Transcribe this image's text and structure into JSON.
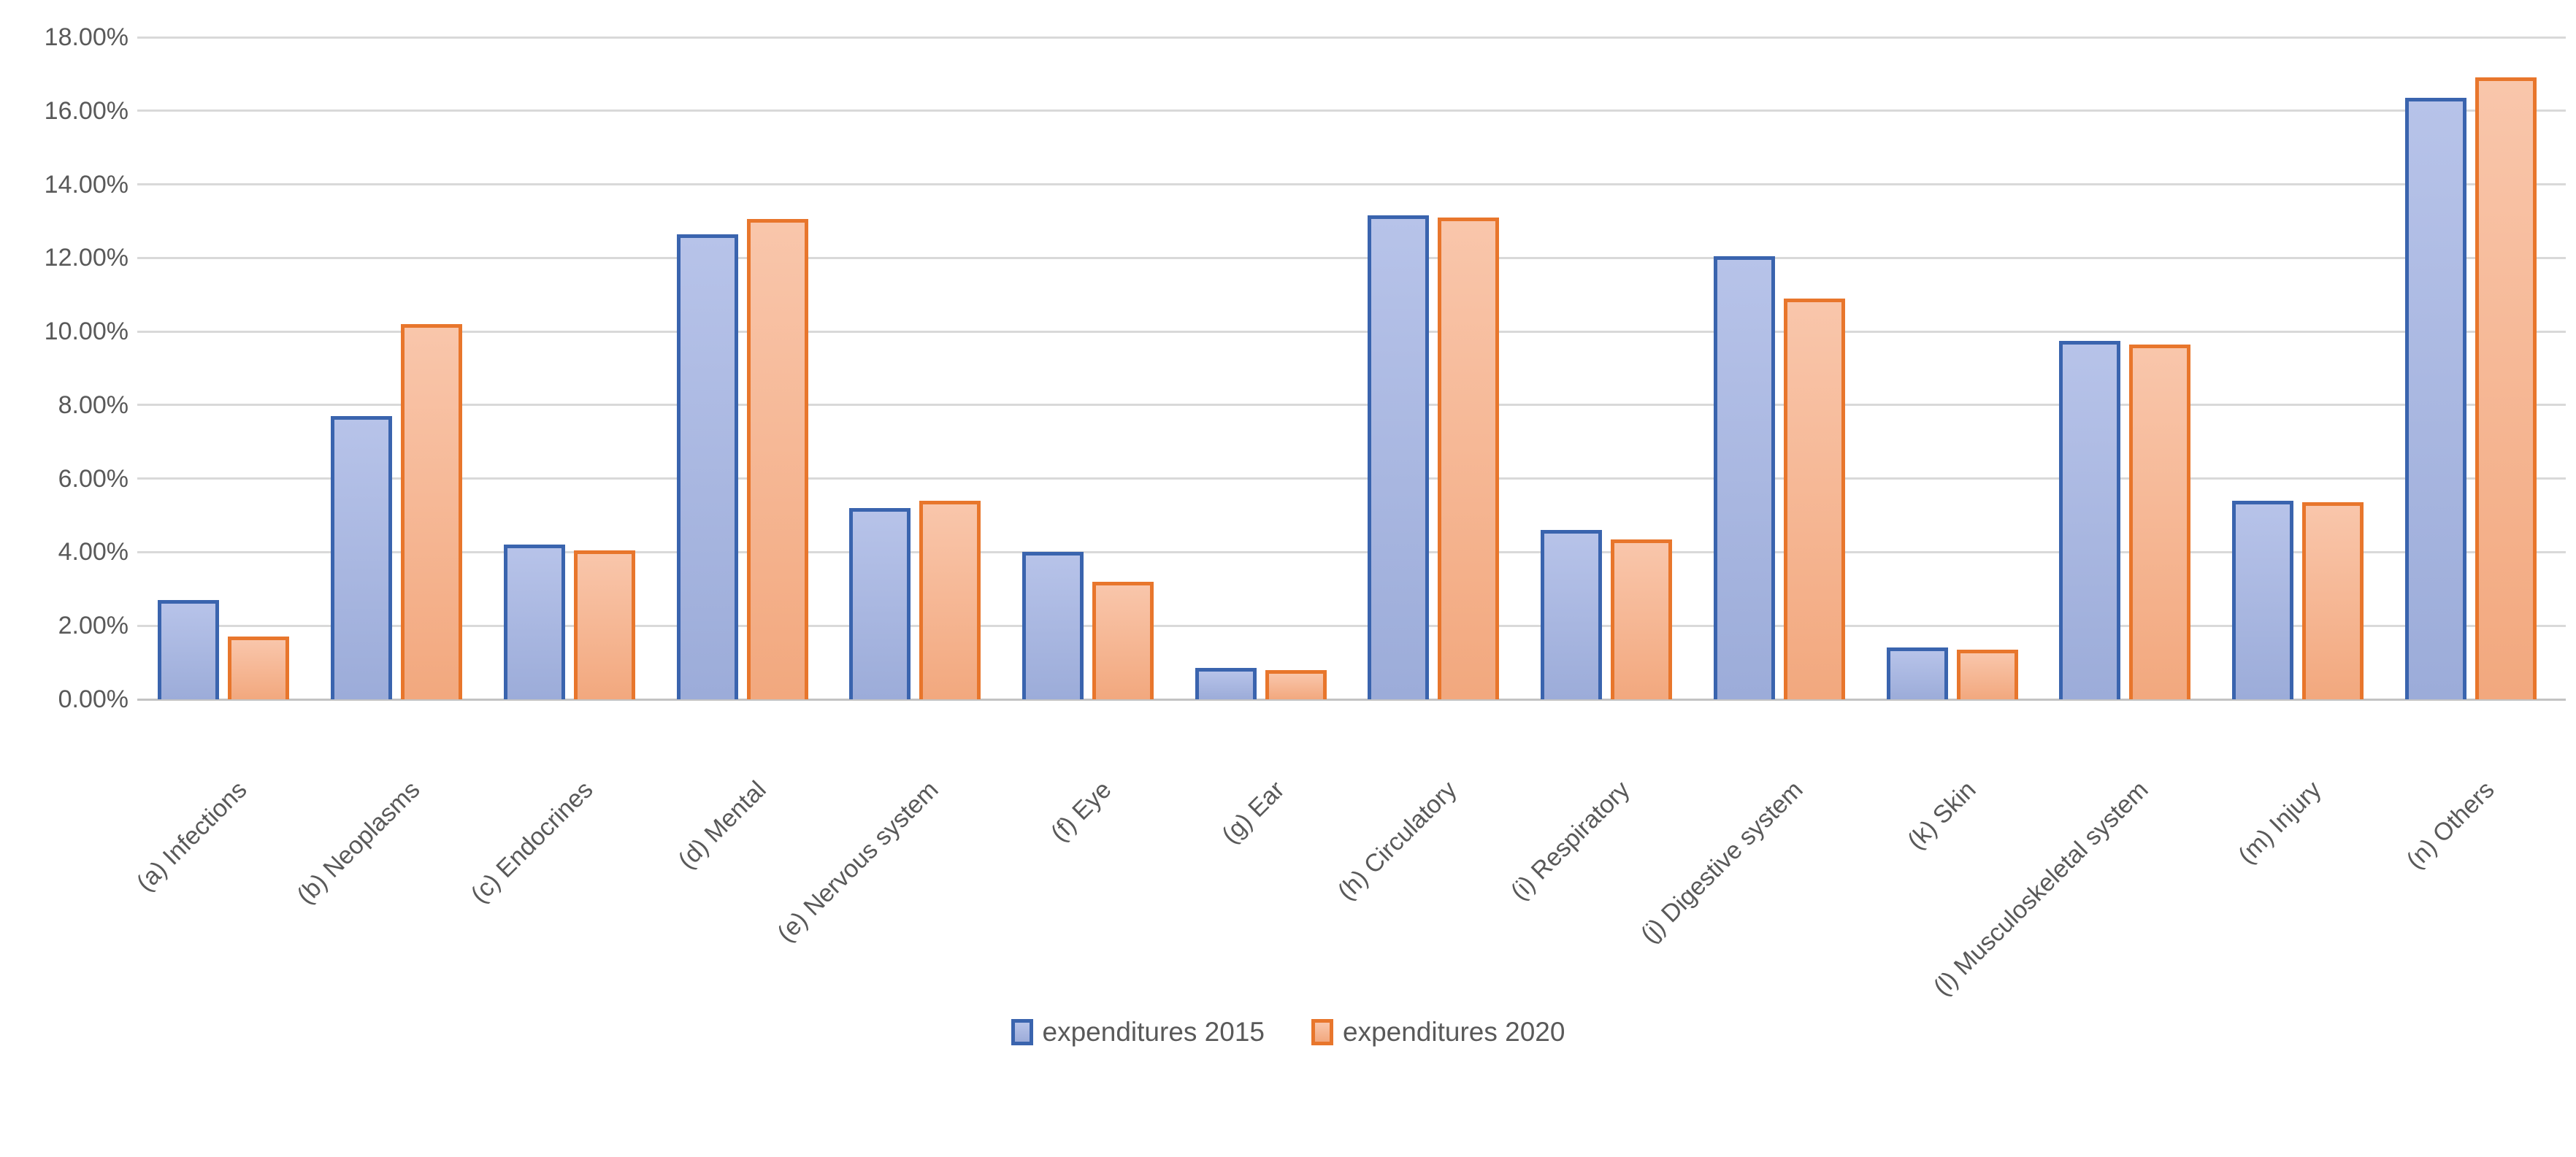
{
  "chart_data": {
    "type": "bar",
    "title": "",
    "xlabel": "",
    "ylabel": "",
    "categories": [
      "(a) Infections",
      "(b) Neoplasms",
      "(c) Endocrines",
      "(d) Mental",
      "(e) Nervous system",
      "(f) Eye",
      "(g) Ear",
      "(h) Circulatory",
      "(i) Respiratory",
      "(j) Digestive system",
      "(k) Skin",
      "(l) Musculoskeletal system",
      "(m) Injury",
      "(n) Others"
    ],
    "series": [
      {
        "name": "expenditures 2015",
        "values": [
          2.7,
          7.7,
          4.2,
          12.65,
          5.2,
          4.0,
          0.85,
          13.15,
          4.6,
          12.05,
          1.4,
          9.75,
          5.4,
          16.35
        ],
        "border_color": "#3A64AE",
        "fill_top": "#B7C3E9",
        "fill_bottom": "#9CACD9"
      },
      {
        "name": "expenditures 2020",
        "values": [
          1.7,
          10.2,
          4.05,
          13.05,
          5.4,
          3.2,
          0.8,
          13.1,
          4.35,
          10.9,
          1.35,
          9.65,
          5.35,
          16.9
        ],
        "border_color": "#E8762C",
        "fill_top": "#F9C6AB",
        "fill_bottom": "#F2A87E"
      }
    ],
    "ylim": [
      0,
      18
    ],
    "ytick_step": 2,
    "yticks": [
      "0.00%",
      "2.00%",
      "4.00%",
      "6.00%",
      "8.00%",
      "10.00%",
      "12.00%",
      "14.00%",
      "16.00%",
      "18.00%"
    ],
    "grid": true,
    "legend_position": "bottom-center"
  },
  "colors": {
    "background": "#FFFFFF",
    "gridline": "#D9D9D9",
    "axis_line": "#C3C3C3",
    "tick_label": "#595959",
    "legend_label": "#595959"
  }
}
